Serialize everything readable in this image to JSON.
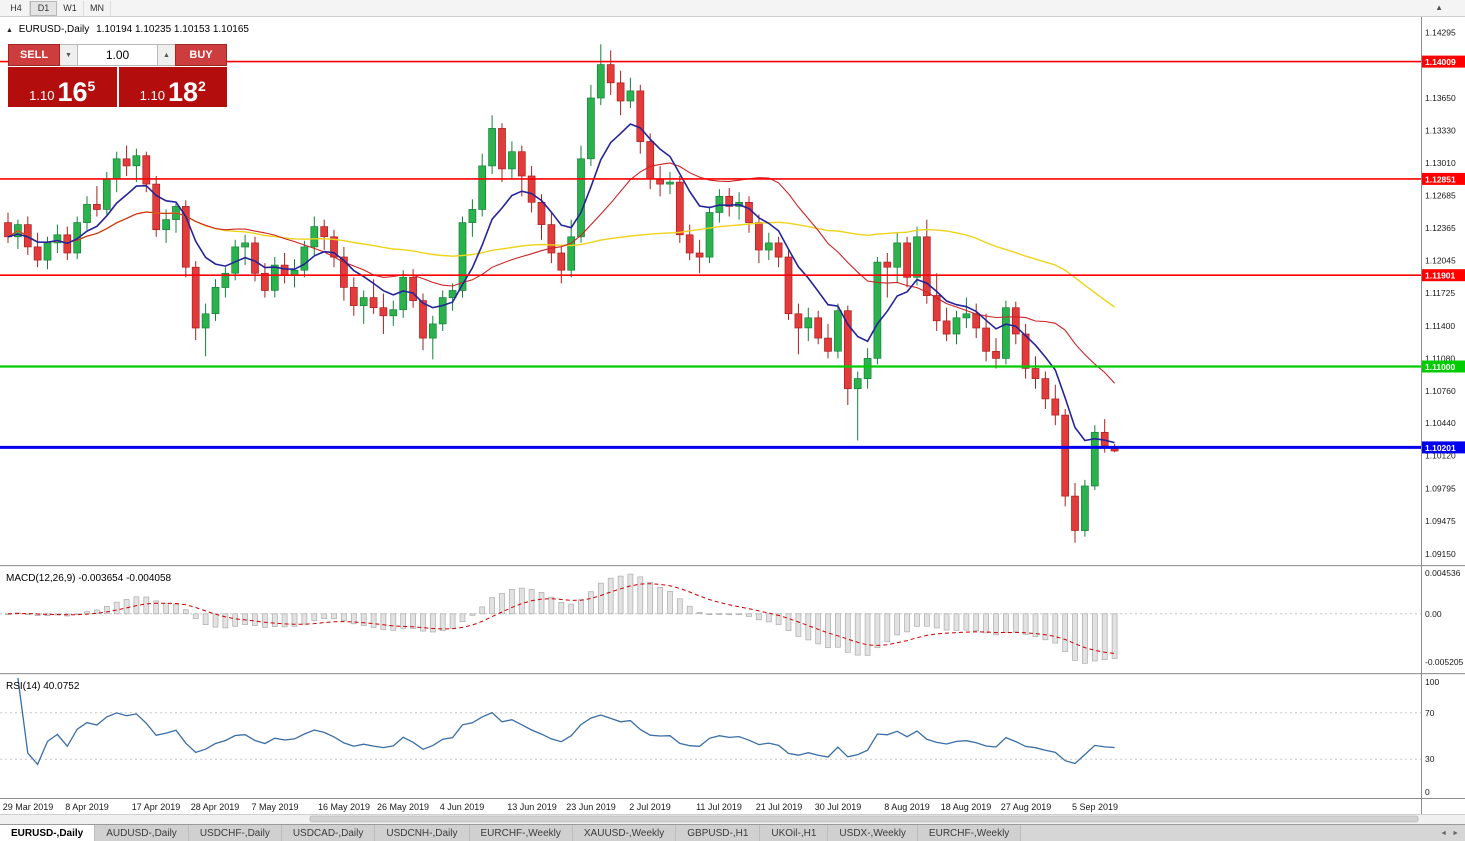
{
  "toolbar": {
    "timeframes": [
      "H4",
      "D1",
      "W1",
      "MN"
    ]
  },
  "icons": {
    "toolbar_caret": "▲",
    "header_collapse": "▲",
    "spin_down": "▼",
    "spin_up": "▲",
    "tab_left": "◄",
    "tab_right": "►"
  },
  "header": {
    "title": "EURUSD-,Daily",
    "ohlc": "1.10194 1.10235 1.10153 1.10165"
  },
  "trade_panel": {
    "sell_label": "SELL",
    "buy_label": "BUY",
    "volume": "1.00",
    "sell_price": {
      "prefix": "1.10",
      "big": "16",
      "sup": "5"
    },
    "buy_price": {
      "prefix": "1.10",
      "big": "18",
      "sup": "2"
    }
  },
  "tabs": [
    {
      "label": "EURUSD-,Daily",
      "active": true
    },
    {
      "label": "AUDUSD-,Daily",
      "active": false
    },
    {
      "label": "USDCHF-,Daily",
      "active": false
    },
    {
      "label": "USDCAD-,Daily",
      "active": false
    },
    {
      "label": "USDCNH-,Daily",
      "active": false
    },
    {
      "label": "EURCHF-,Weekly",
      "active": false
    },
    {
      "label": "XAUUSD-,Weekly",
      "active": false
    },
    {
      "label": "GBPUSD-,H1",
      "active": false
    },
    {
      "label": "UKOil-,H1",
      "active": false
    },
    {
      "label": "USDX-,Weekly",
      "active": false
    },
    {
      "label": "EURCHF-,Weekly",
      "active": false
    }
  ],
  "colors": {
    "bull": "#2bb24c",
    "bull_border": "#15803a",
    "bear": "#e23b3b",
    "bear_border": "#a81f1f",
    "ma_fast": "#24249a",
    "ma_mid": "#cc2222",
    "ma_slow": "#eed31c",
    "macd_hist_fill": "#e2e2e2",
    "macd_hist_border": "#ababab",
    "macd_signal": "#cc0000",
    "rsi_line": "#3a6ea5",
    "level_red": "#ff0000",
    "level_green": "#00cc00",
    "level_blue": "#0000ee"
  },
  "chart_data": {
    "type": "candlestick",
    "symbol": "EURUSD-",
    "timeframe": "Daily",
    "title": "EURUSD-,Daily 1.10194 1.10235 1.10153 1.10165",
    "ylim": [
      1.0906,
      1.144
    ],
    "y_ticks": [
      1.14295,
      1.1365,
      1.1333,
      1.1301,
      1.12685,
      1.12365,
      1.12045,
      1.11725,
      1.114,
      1.1108,
      1.1076,
      1.1044,
      1.1012,
      1.09795,
      1.09475,
      1.0915
    ],
    "levels": [
      {
        "price": 1.14009,
        "color": "#ff0000",
        "width": 1.6
      },
      {
        "price": 1.12851,
        "color": "#ff0000",
        "width": 1.6
      },
      {
        "price": 1.11901,
        "color": "#ff0000",
        "width": 1.6
      },
      {
        "price": 1.11,
        "color": "#00cc00",
        "width": 2.2
      },
      {
        "price": 1.10201,
        "color": "#0000ee",
        "width": 3
      }
    ],
    "moving_averages": [
      {
        "period": 50,
        "method": "sma",
        "color": "#eed31c",
        "width": 1.4
      },
      {
        "period": 20,
        "method": "sma",
        "color": "#cc2222",
        "width": 1.1
      },
      {
        "period": 8,
        "method": "ema",
        "color": "#24249a",
        "width": 1.6
      }
    ],
    "x_labels": [
      {
        "text": "29 Mar 2019",
        "i": 2
      },
      {
        "text": "8 Apr 2019",
        "i": 8
      },
      {
        "text": "17 Apr 2019",
        "i": 15
      },
      {
        "text": "28 Apr 2019",
        "i": 21
      },
      {
        "text": "7 May 2019",
        "i": 27
      },
      {
        "text": "16 May 2019",
        "i": 34
      },
      {
        "text": "26 May 2019",
        "i": 40
      },
      {
        "text": "4 Jun 2019",
        "i": 46
      },
      {
        "text": "13 Jun 2019",
        "i": 53
      },
      {
        "text": "23 Jun 2019",
        "i": 59
      },
      {
        "text": "2 Jul 2019",
        "i": 65
      },
      {
        "text": "11 Jul 2019",
        "i": 72
      },
      {
        "text": "21 Jul 2019",
        "i": 78
      },
      {
        "text": "30 Jul 2019",
        "i": 84
      },
      {
        "text": "8 Aug 2019",
        "i": 91
      },
      {
        "text": "18 Aug 2019",
        "i": 97
      },
      {
        "text": "27 Aug 2019",
        "i": 103
      },
      {
        "text": "5 Sep 2019",
        "i": 110
      }
    ],
    "indicators": {
      "macd": {
        "label": "MACD(12,26,9) -0.003654 -0.004058",
        "params": [
          12,
          26,
          9
        ],
        "ylim": [
          -0.005205,
          0.004536
        ],
        "y_ticks": [
          "0.004536",
          "0.00",
          "-0.005205"
        ]
      },
      "rsi": {
        "label": "RSI(14) 40.0752",
        "period": 14,
        "levels": [
          70,
          30
        ],
        "y_ticks": [
          "100",
          "70",
          "30",
          "0"
        ]
      }
    },
    "ohlc": [
      [
        1.1242,
        1.1252,
        1.1222,
        1.1228
      ],
      [
        1.1228,
        1.1245,
        1.1216,
        1.124
      ],
      [
        1.124,
        1.1248,
        1.121,
        1.1218
      ],
      [
        1.1218,
        1.1232,
        1.1198,
        1.1205
      ],
      [
        1.1205,
        1.1228,
        1.1196,
        1.1222
      ],
      [
        1.1222,
        1.124,
        1.1212,
        1.123
      ],
      [
        1.123,
        1.1238,
        1.1205,
        1.1212
      ],
      [
        1.1212,
        1.1248,
        1.1206,
        1.1242
      ],
      [
        1.1242,
        1.1268,
        1.1235,
        1.126
      ],
      [
        1.126,
        1.1278,
        1.1248,
        1.1255
      ],
      [
        1.1255,
        1.1292,
        1.125,
        1.1285
      ],
      [
        1.1285,
        1.1312,
        1.1272,
        1.1305
      ],
      [
        1.1305,
        1.1318,
        1.1288,
        1.1298
      ],
      [
        1.1298,
        1.1315,
        1.1282,
        1.1308
      ],
      [
        1.1308,
        1.1312,
        1.1272,
        1.128
      ],
      [
        1.128,
        1.1288,
        1.1228,
        1.1235
      ],
      [
        1.1235,
        1.1255,
        1.1222,
        1.1245
      ],
      [
        1.1245,
        1.1262,
        1.1232,
        1.1258
      ],
      [
        1.1258,
        1.1264,
        1.1188,
        1.1198
      ],
      [
        1.1198,
        1.1204,
        1.1126,
        1.1138
      ],
      [
        1.1138,
        1.1162,
        1.111,
        1.1152
      ],
      [
        1.1152,
        1.1186,
        1.1145,
        1.1178
      ],
      [
        1.1178,
        1.1198,
        1.1168,
        1.1192
      ],
      [
        1.1192,
        1.1225,
        1.1185,
        1.1218
      ],
      [
        1.1218,
        1.123,
        1.12,
        1.1222
      ],
      [
        1.1222,
        1.1228,
        1.1184,
        1.1192
      ],
      [
        1.1192,
        1.1202,
        1.1168,
        1.1175
      ],
      [
        1.1175,
        1.1208,
        1.1168,
        1.12
      ],
      [
        1.12,
        1.1212,
        1.1182,
        1.119
      ],
      [
        1.119,
        1.1206,
        1.1178,
        1.1195
      ],
      [
        1.1195,
        1.1224,
        1.1188,
        1.1218
      ],
      [
        1.1218,
        1.1248,
        1.121,
        1.1238
      ],
      [
        1.1238,
        1.1245,
        1.1215,
        1.1228
      ],
      [
        1.1228,
        1.1235,
        1.1198,
        1.1208
      ],
      [
        1.1208,
        1.1218,
        1.1165,
        1.1178
      ],
      [
        1.1178,
        1.1188,
        1.115,
        1.116
      ],
      [
        1.116,
        1.1175,
        1.1142,
        1.1168
      ],
      [
        1.1168,
        1.1186,
        1.1152,
        1.1158
      ],
      [
        1.1158,
        1.1172,
        1.1132,
        1.115
      ],
      [
        1.115,
        1.1165,
        1.114,
        1.1156
      ],
      [
        1.1156,
        1.1195,
        1.1148,
        1.1188
      ],
      [
        1.1188,
        1.1196,
        1.1158,
        1.1165
      ],
      [
        1.1165,
        1.1172,
        1.1116,
        1.1128
      ],
      [
        1.1128,
        1.115,
        1.1107,
        1.1142
      ],
      [
        1.1142,
        1.1175,
        1.1135,
        1.1168
      ],
      [
        1.1168,
        1.1182,
        1.1155,
        1.1175
      ],
      [
        1.1175,
        1.1248,
        1.1168,
        1.1242
      ],
      [
        1.1242,
        1.1265,
        1.1228,
        1.1255
      ],
      [
        1.1255,
        1.131,
        1.1248,
        1.1298
      ],
      [
        1.1298,
        1.1348,
        1.129,
        1.1335
      ],
      [
        1.1335,
        1.134,
        1.1282,
        1.1295
      ],
      [
        1.1295,
        1.1322,
        1.1285,
        1.1312
      ],
      [
        1.1312,
        1.1318,
        1.1268,
        1.1288
      ],
      [
        1.1288,
        1.1298,
        1.1252,
        1.1262
      ],
      [
        1.1262,
        1.127,
        1.1225,
        1.124
      ],
      [
        1.124,
        1.1252,
        1.1202,
        1.1212
      ],
      [
        1.1212,
        1.1218,
        1.1182,
        1.1195
      ],
      [
        1.1195,
        1.1245,
        1.1188,
        1.1228
      ],
      [
        1.1228,
        1.1318,
        1.1222,
        1.1305
      ],
      [
        1.1305,
        1.1378,
        1.1298,
        1.1365
      ],
      [
        1.1365,
        1.1418,
        1.1358,
        1.1398
      ],
      [
        1.1398,
        1.1412,
        1.1368,
        1.138
      ],
      [
        1.138,
        1.1392,
        1.1348,
        1.1362
      ],
      [
        1.1362,
        1.1385,
        1.1355,
        1.1372
      ],
      [
        1.1372,
        1.1378,
        1.131,
        1.1322
      ],
      [
        1.1322,
        1.133,
        1.1275,
        1.1285
      ],
      [
        1.1285,
        1.1298,
        1.1268,
        1.128
      ],
      [
        1.128,
        1.1292,
        1.127,
        1.1282
      ],
      [
        1.1282,
        1.1288,
        1.1222,
        1.123
      ],
      [
        1.123,
        1.124,
        1.1205,
        1.1212
      ],
      [
        1.1212,
        1.1225,
        1.1192,
        1.1208
      ],
      [
        1.1208,
        1.1258,
        1.1202,
        1.1252
      ],
      [
        1.1252,
        1.1275,
        1.1242,
        1.1268
      ],
      [
        1.1268,
        1.1276,
        1.1248,
        1.1258
      ],
      [
        1.1258,
        1.1272,
        1.1245,
        1.1262
      ],
      [
        1.1262,
        1.1268,
        1.1232,
        1.1242
      ],
      [
        1.1242,
        1.125,
        1.1202,
        1.1215
      ],
      [
        1.1215,
        1.1232,
        1.1205,
        1.1222
      ],
      [
        1.1222,
        1.1228,
        1.1198,
        1.1208
      ],
      [
        1.1208,
        1.1215,
        1.1146,
        1.1152
      ],
      [
        1.1152,
        1.1162,
        1.1112,
        1.1138
      ],
      [
        1.1138,
        1.1158,
        1.1125,
        1.1148
      ],
      [
        1.1148,
        1.1155,
        1.1122,
        1.1128
      ],
      [
        1.1128,
        1.1142,
        1.1108,
        1.1115
      ],
      [
        1.1115,
        1.1162,
        1.1108,
        1.1155
      ],
      [
        1.1155,
        1.116,
        1.1062,
        1.1078
      ],
      [
        1.1078,
        1.1095,
        1.1027,
        1.1088
      ],
      [
        1.1088,
        1.1118,
        1.1078,
        1.1108
      ],
      [
        1.1108,
        1.1208,
        1.1102,
        1.1203
      ],
      [
        1.1203,
        1.1212,
        1.1168,
        1.1198
      ],
      [
        1.1198,
        1.1232,
        1.1182,
        1.1222
      ],
      [
        1.1222,
        1.1228,
        1.1178,
        1.1188
      ],
      [
        1.1188,
        1.1238,
        1.118,
        1.1228
      ],
      [
        1.1228,
        1.1245,
        1.1162,
        1.117
      ],
      [
        1.117,
        1.1192,
        1.1135,
        1.1145
      ],
      [
        1.1145,
        1.1158,
        1.1125,
        1.1132
      ],
      [
        1.1132,
        1.1155,
        1.1122,
        1.1148
      ],
      [
        1.1148,
        1.1168,
        1.1138,
        1.1152
      ],
      [
        1.1152,
        1.1162,
        1.1128,
        1.1138
      ],
      [
        1.1138,
        1.1152,
        1.1105,
        1.1115
      ],
      [
        1.1115,
        1.1128,
        1.1098,
        1.1108
      ],
      [
        1.1108,
        1.1165,
        1.1102,
        1.1158
      ],
      [
        1.1158,
        1.1164,
        1.1122,
        1.1132
      ],
      [
        1.1132,
        1.1142,
        1.1088,
        1.1098
      ],
      [
        1.1098,
        1.111,
        1.1078,
        1.1088
      ],
      [
        1.1088,
        1.1095,
        1.1058,
        1.1068
      ],
      [
        1.1068,
        1.1082,
        1.1042,
        1.1052
      ],
      [
        1.1052,
        1.1058,
        1.0962,
        1.0972
      ],
      [
        1.0972,
        1.0985,
        1.0926,
        1.0938
      ],
      [
        1.0938,
        1.0988,
        1.0932,
        1.0982
      ],
      [
        1.0982,
        1.1042,
        1.0978,
        1.1035
      ],
      [
        1.1035,
        1.1048,
        1.1015,
        1.1022
      ],
      [
        1.10194,
        1.10235,
        1.10153,
        1.10165
      ]
    ]
  }
}
